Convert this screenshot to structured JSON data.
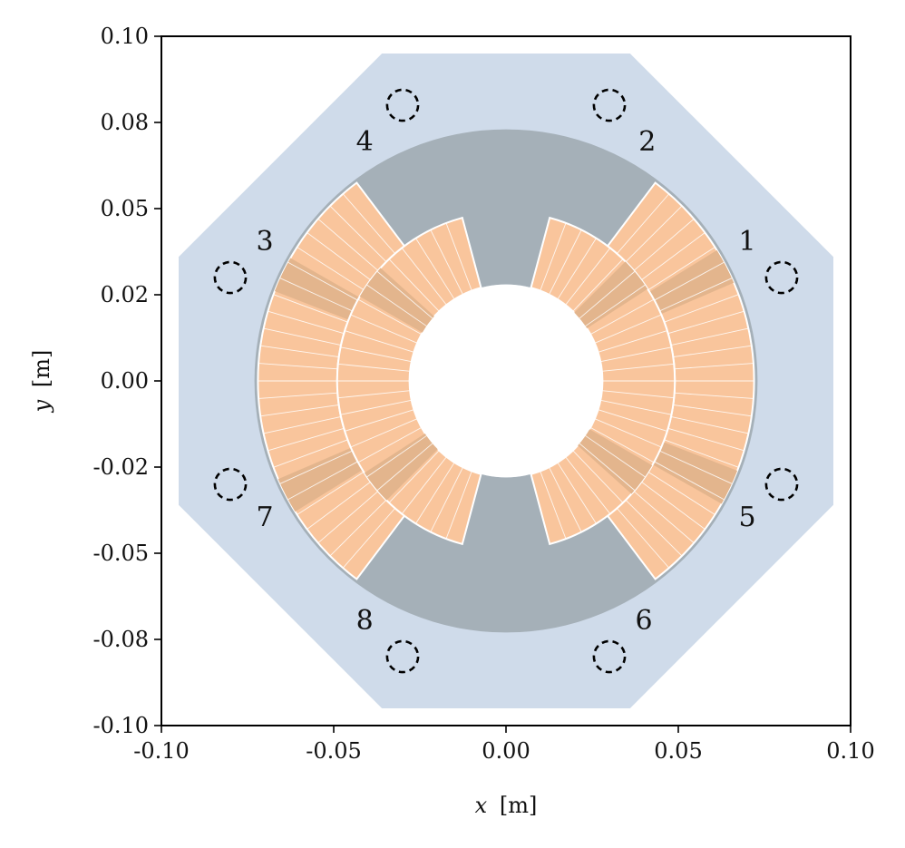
{
  "figure": {
    "x_axis": {
      "label_var": "x",
      "label_unit": "[m]"
    },
    "y_axis": {
      "label_var": "y",
      "label_unit": "[m]"
    }
  },
  "chart_data": {
    "type": "diagram",
    "xlim": [
      -0.1,
      0.1
    ],
    "ylim": [
      -0.1,
      0.1
    ],
    "xticks": [
      -0.1,
      -0.05,
      0.0,
      0.05,
      0.1
    ],
    "xtick_labels": [
      "-0.10",
      "-0.05",
      "0.00",
      "0.05",
      "0.10"
    ],
    "yticks": [
      -0.1,
      -0.075,
      -0.05,
      -0.025,
      0.0,
      0.025,
      0.05,
      0.075,
      0.1
    ],
    "ytick_labels": [
      "-0.10",
      "-0.08",
      "-0.05",
      "-0.02",
      "0.00",
      "0.02",
      "0.05",
      "0.08",
      "0.10"
    ],
    "enclosure": {
      "half_width": 0.095,
      "corner_cut": 0.036,
      "color": "#cfdbea"
    },
    "gray_ring": {
      "r_inner": 0.028,
      "r_outer": 0.073,
      "color": "#a5b0b8"
    },
    "inner_hole_radius": 0.028,
    "coil_color": "#f9c59c",
    "coil_dark_color": "#e3b58d",
    "coils": [
      {
        "r_in": 0.049,
        "r_out": 0.072,
        "start_deg": -53,
        "end_deg": 53
      },
      {
        "r_in": 0.049,
        "r_out": 0.072,
        "start_deg": 127,
        "end_deg": 233
      },
      {
        "r_in": 0.028,
        "r_out": 0.049,
        "start_deg": -75,
        "end_deg": 75
      },
      {
        "r_in": 0.028,
        "r_out": 0.049,
        "start_deg": 105,
        "end_deg": 255
      }
    ],
    "ports": [
      {
        "label": "1",
        "x": 0.08,
        "y": 0.03,
        "label_x": 0.07,
        "label_y": 0.04
      },
      {
        "label": "2",
        "x": 0.03,
        "y": 0.08,
        "label_x": 0.041,
        "label_y": 0.069
      },
      {
        "label": "3",
        "x": -0.08,
        "y": 0.03,
        "label_x": -0.07,
        "label_y": 0.04
      },
      {
        "label": "4",
        "x": -0.03,
        "y": 0.08,
        "label_x": -0.041,
        "label_y": 0.069
      },
      {
        "label": "5",
        "x": 0.08,
        "y": -0.03,
        "label_x": 0.07,
        "label_y": -0.04
      },
      {
        "label": "6",
        "x": 0.03,
        "y": -0.08,
        "label_x": 0.04,
        "label_y": -0.07
      },
      {
        "label": "7",
        "x": -0.08,
        "y": -0.03,
        "label_x": -0.07,
        "label_y": -0.04
      },
      {
        "label": "8",
        "x": -0.03,
        "y": -0.08,
        "label_x": -0.041,
        "label_y": -0.07
      }
    ],
    "port_radius": 0.0045
  }
}
